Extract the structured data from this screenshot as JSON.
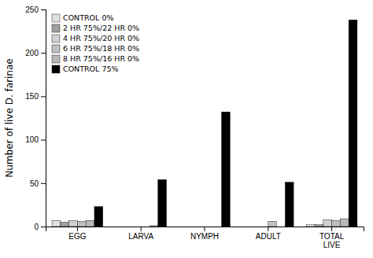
{
  "chart_data": {
    "type": "bar",
    "categories": [
      "EGG",
      "LARVA",
      "NYMPH",
      "ADULT",
      "TOTAL\nLIVE"
    ],
    "series": [
      {
        "name": "CONTROL 0%",
        "color": "#e0e0e0",
        "values": [
          7,
          0,
          0,
          0,
          2
        ]
      },
      {
        "name": "2 HR 75%/22 HR 0%",
        "color": "#a0a0a0",
        "values": [
          5,
          0,
          0,
          0,
          2
        ]
      },
      {
        "name": "4 HR 75%/20 HR 0%",
        "color": "#d0d0d0",
        "values": [
          7,
          0,
          0,
          0,
          8
        ]
      },
      {
        "name": "6 HR 75%/18 HR 0%",
        "color": "#c0c0c0",
        "values": [
          6,
          0,
          0,
          6,
          7
        ]
      },
      {
        "name": "8 HR 75%/16 HR 0%",
        "color": "#b8b8b8",
        "values": [
          7,
          1,
          0,
          0,
          9
        ]
      },
      {
        "name": "CONTROL 75%",
        "color": "#000000",
        "values": [
          23,
          54,
          132,
          51,
          238
        ]
      }
    ],
    "ylabel": "Number of live D. farinae",
    "ylim": [
      0,
      250
    ],
    "yticks": [
      0,
      50,
      100,
      150,
      200,
      250
    ],
    "legend": "upper left",
    "grid": false
  }
}
